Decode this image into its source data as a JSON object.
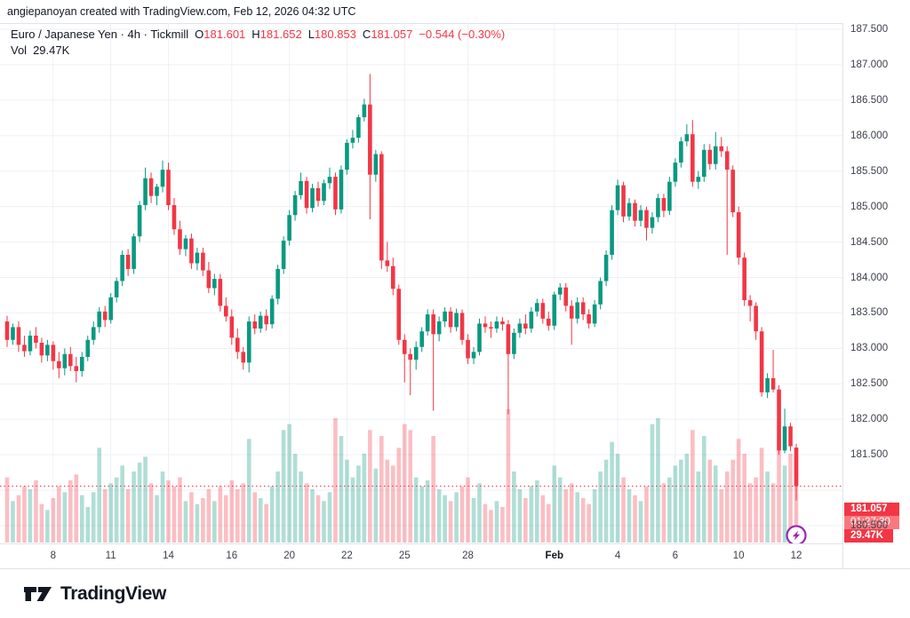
{
  "attribution": "angiepanoyan created with TradingView.com, Feb 12, 2026 04:32 UTC",
  "legend": {
    "series": "Euro / Japanese Yen · 4h · Tickmill",
    "o_label": "O",
    "o_value": "181.601",
    "h_label": "H",
    "h_value": "181.652",
    "l_label": "L",
    "l_value": "180.853",
    "c_label": "C",
    "c_value": "181.057",
    "change": "−0.544 (−0.30%)",
    "vol_label": "Vol",
    "vol_value": "29.47K"
  },
  "colors": {
    "up": "#089981",
    "down": "#f23645",
    "vol_up": "rgba(8,153,129,0.32)",
    "vol_down": "rgba(242,54,69,0.32)",
    "grid": "#eef0f6",
    "border": "#e0e3eb",
    "text": "#131722",
    "price_line": "#f23645",
    "badge_red": "#f23645",
    "badge_light_red": "#f7797f",
    "accent_purple": "#9c27b0"
  },
  "price_axis": {
    "badge": {
      "price": "181.057",
      "countdown": "01:27:30",
      "volume": "29.47K"
    }
  },
  "footer": {
    "logo_text": "TradingView"
  },
  "alert_icon": {
    "name": "lightning-bolt"
  },
  "chart_data": {
    "type": "candlestick",
    "title": "Euro / Japanese Yen, 4h, Tickmill",
    "ylim": [
      180.5,
      187.5
    ],
    "grid_step": 0.5,
    "price_line": 181.057,
    "last_ohlc": {
      "open": 181.601,
      "high": 181.652,
      "low": 180.853,
      "close": 181.057,
      "volume": "29.47K"
    },
    "ohlc_format": [
      "open",
      "high",
      "low",
      "close",
      "volume_K"
    ],
    "price_ticks": [
      {
        "label": "187.500",
        "value": 187.5
      },
      {
        "label": "187.000",
        "value": 187.0
      },
      {
        "label": "186.500",
        "value": 186.5
      },
      {
        "label": "186.000",
        "value": 186.0
      },
      {
        "label": "185.500",
        "value": 185.5
      },
      {
        "label": "185.000",
        "value": 185.0
      },
      {
        "label": "184.500",
        "value": 184.5
      },
      {
        "label": "184.000",
        "value": 184.0
      },
      {
        "label": "183.500",
        "value": 183.5
      },
      {
        "label": "183.000",
        "value": 183.0
      },
      {
        "label": "182.500",
        "value": 182.5
      },
      {
        "label": "182.000",
        "value": 182.0
      },
      {
        "label": "181.500",
        "value": 181.5
      },
      {
        "label": "180.500",
        "value": 180.5
      }
    ],
    "time_ticks": [
      {
        "label": "8",
        "index": 8,
        "bold": false
      },
      {
        "label": "11",
        "index": 18,
        "bold": false
      },
      {
        "label": "14",
        "index": 28,
        "bold": false
      },
      {
        "label": "16",
        "index": 39,
        "bold": false
      },
      {
        "label": "20",
        "index": 49,
        "bold": false
      },
      {
        "label": "22",
        "index": 59,
        "bold": false
      },
      {
        "label": "25",
        "index": 69,
        "bold": false
      },
      {
        "label": "28",
        "index": 80,
        "bold": false
      },
      {
        "label": "Feb",
        "index": 95,
        "bold": true
      },
      {
        "label": "4",
        "index": 106,
        "bold": false
      },
      {
        "label": "6",
        "index": 116,
        "bold": false
      },
      {
        "label": "10",
        "index": 127,
        "bold": false
      },
      {
        "label": "12",
        "index": 137,
        "bold": false
      }
    ],
    "candles": [
      [
        183.38,
        183.46,
        183.02,
        183.12,
        22
      ],
      [
        183.12,
        183.35,
        183.05,
        183.3,
        14
      ],
      [
        183.3,
        183.38,
        182.95,
        183.05,
        16
      ],
      [
        183.05,
        183.18,
        182.88,
        182.96,
        19
      ],
      [
        182.96,
        183.25,
        182.9,
        183.18,
        18
      ],
      [
        183.18,
        183.3,
        183.0,
        183.08,
        21
      ],
      [
        183.08,
        183.15,
        182.8,
        182.9,
        13
      ],
      [
        182.9,
        183.12,
        182.82,
        183.05,
        11
      ],
      [
        183.05,
        183.1,
        182.7,
        182.82,
        15
      ],
      [
        182.82,
        182.95,
        182.58,
        182.72,
        19
      ],
      [
        182.72,
        183.0,
        182.62,
        182.92,
        17
      ],
      [
        182.92,
        183.02,
        182.68,
        182.75,
        21
      ],
      [
        182.75,
        182.88,
        182.52,
        182.68,
        23
      ],
      [
        182.68,
        182.95,
        182.6,
        182.88,
        16
      ],
      [
        182.88,
        183.18,
        182.82,
        183.12,
        12
      ],
      [
        183.12,
        183.38,
        183.05,
        183.3,
        17
      ],
      [
        183.3,
        183.58,
        183.22,
        183.52,
        32
      ],
      [
        183.52,
        183.6,
        183.3,
        183.4,
        18
      ],
      [
        183.4,
        183.78,
        183.35,
        183.72,
        20
      ],
      [
        183.72,
        184.0,
        183.65,
        183.95,
        22
      ],
      [
        183.95,
        184.38,
        183.88,
        184.32,
        26
      ],
      [
        184.32,
        184.4,
        184.02,
        184.12,
        18
      ],
      [
        184.12,
        184.62,
        184.05,
        184.58,
        24
      ],
      [
        184.58,
        185.08,
        184.5,
        185.02,
        27
      ],
      [
        185.02,
        185.55,
        184.95,
        185.4,
        29
      ],
      [
        185.4,
        185.48,
        185.05,
        185.15,
        20
      ],
      [
        185.15,
        185.32,
        185.02,
        185.28,
        16
      ],
      [
        185.28,
        185.65,
        185.2,
        185.52,
        24
      ],
      [
        185.52,
        185.62,
        184.95,
        185.02,
        21
      ],
      [
        185.02,
        185.12,
        184.6,
        184.68,
        19
      ],
      [
        184.68,
        184.8,
        184.32,
        184.4,
        22
      ],
      [
        184.4,
        184.6,
        184.3,
        184.55,
        14
      ],
      [
        184.55,
        184.62,
        184.12,
        184.2,
        17
      ],
      [
        184.2,
        184.42,
        184.1,
        184.35,
        13
      ],
      [
        184.35,
        184.42,
        184.02,
        184.1,
        15
      ],
      [
        184.1,
        184.22,
        183.78,
        183.85,
        18
      ],
      [
        183.85,
        184.05,
        183.75,
        183.98,
        14
      ],
      [
        183.98,
        184.05,
        183.52,
        183.6,
        19
      ],
      [
        183.6,
        183.72,
        183.38,
        183.45,
        16
      ],
      [
        183.45,
        183.55,
        183.05,
        183.15,
        21
      ],
      [
        183.15,
        183.28,
        182.85,
        182.95,
        18
      ],
      [
        182.95,
        183.02,
        182.7,
        182.8,
        20
      ],
      [
        182.8,
        183.45,
        182.66,
        183.38,
        35
      ],
      [
        183.38,
        183.48,
        183.2,
        183.28,
        17
      ],
      [
        183.28,
        183.52,
        183.22,
        183.46,
        15
      ],
      [
        183.46,
        183.55,
        183.25,
        183.34,
        13
      ],
      [
        183.34,
        183.75,
        183.28,
        183.7,
        19
      ],
      [
        183.7,
        184.18,
        183.62,
        184.12,
        24
      ],
      [
        184.12,
        184.58,
        184.05,
        184.52,
        38
      ],
      [
        184.52,
        184.95,
        184.45,
        184.88,
        40
      ],
      [
        184.88,
        185.22,
        184.8,
        185.16,
        30
      ],
      [
        185.16,
        185.48,
        185.1,
        185.36,
        24
      ],
      [
        185.36,
        185.42,
        184.9,
        184.98,
        20
      ],
      [
        184.98,
        185.32,
        184.92,
        185.26,
        18
      ],
      [
        185.26,
        185.35,
        185.0,
        185.08,
        16
      ],
      [
        185.08,
        185.38,
        185.02,
        185.33,
        14
      ],
      [
        185.33,
        185.55,
        185.25,
        185.42,
        17
      ],
      [
        185.42,
        185.48,
        184.88,
        184.96,
        42
      ],
      [
        184.96,
        185.58,
        184.9,
        185.52,
        36
      ],
      [
        185.52,
        185.95,
        185.45,
        185.9,
        28
      ],
      [
        185.9,
        186.08,
        185.82,
        185.97,
        22
      ],
      [
        185.97,
        186.3,
        185.9,
        186.26,
        26
      ],
      [
        186.26,
        186.52,
        186.2,
        186.44,
        30
      ],
      [
        186.44,
        186.87,
        184.82,
        185.45,
        38
      ],
      [
        185.45,
        185.8,
        185.35,
        185.74,
        25
      ],
      [
        185.74,
        185.78,
        184.12,
        184.24,
        36
      ],
      [
        184.24,
        184.5,
        184.08,
        184.16,
        28
      ],
      [
        184.16,
        184.28,
        183.75,
        183.84,
        26
      ],
      [
        183.84,
        183.9,
        183.05,
        183.12,
        32
      ],
      [
        183.12,
        183.2,
        182.52,
        182.92,
        40
      ],
      [
        182.92,
        183.0,
        182.34,
        182.84,
        38
      ],
      [
        182.84,
        183.1,
        182.7,
        183.02,
        22
      ],
      [
        183.02,
        183.3,
        182.95,
        183.24,
        19
      ],
      [
        183.24,
        183.55,
        183.18,
        183.48,
        21
      ],
      [
        183.48,
        183.55,
        182.12,
        183.2,
        36
      ],
      [
        183.2,
        183.45,
        183.1,
        183.38,
        18
      ],
      [
        183.38,
        183.58,
        183.3,
        183.52,
        16
      ],
      [
        183.52,
        183.58,
        183.22,
        183.3,
        14
      ],
      [
        183.3,
        183.56,
        183.24,
        183.5,
        17
      ],
      [
        183.5,
        183.55,
        183.05,
        183.12,
        19
      ],
      [
        183.12,
        183.2,
        182.78,
        182.86,
        22
      ],
      [
        182.86,
        183.02,
        182.78,
        182.95,
        15
      ],
      [
        182.95,
        183.42,
        182.9,
        183.35,
        20
      ],
      [
        183.35,
        183.45,
        183.22,
        183.3,
        13
      ],
      [
        183.3,
        183.38,
        183.15,
        183.28,
        11
      ],
      [
        183.28,
        183.45,
        183.22,
        183.38,
        14
      ],
      [
        183.38,
        183.44,
        183.25,
        183.34,
        12
      ],
      [
        183.34,
        183.4,
        182.07,
        182.92,
        45
      ],
      [
        182.92,
        183.28,
        182.85,
        183.22,
        24
      ],
      [
        183.22,
        183.42,
        183.15,
        183.35,
        18
      ],
      [
        183.35,
        183.48,
        183.2,
        183.28,
        15
      ],
      [
        183.28,
        183.58,
        183.22,
        183.52,
        19
      ],
      [
        183.52,
        183.7,
        183.45,
        183.64,
        21
      ],
      [
        183.64,
        183.7,
        183.35,
        183.42,
        16
      ],
      [
        183.42,
        183.52,
        183.25,
        183.32,
        13
      ],
      [
        183.32,
        183.8,
        183.26,
        183.76,
        26
      ],
      [
        183.76,
        183.92,
        183.68,
        183.86,
        22
      ],
      [
        183.86,
        183.92,
        183.52,
        183.6,
        18
      ],
      [
        183.6,
        183.68,
        183.05,
        183.42,
        20
      ],
      [
        183.42,
        183.72,
        183.35,
        183.65,
        17
      ],
      [
        183.65,
        183.72,
        183.4,
        183.48,
        15
      ],
      [
        183.48,
        183.55,
        183.28,
        183.35,
        13
      ],
      [
        183.35,
        183.68,
        183.3,
        183.62,
        18
      ],
      [
        183.62,
        184.0,
        183.55,
        183.95,
        24
      ],
      [
        183.95,
        184.38,
        183.88,
        184.32,
        28
      ],
      [
        184.32,
        185.02,
        184.25,
        184.95,
        34
      ],
      [
        184.95,
        185.38,
        184.88,
        185.3,
        30
      ],
      [
        185.3,
        185.35,
        184.78,
        184.86,
        22
      ],
      [
        184.86,
        185.12,
        184.8,
        185.05,
        18
      ],
      [
        185.05,
        185.1,
        184.72,
        184.8,
        16
      ],
      [
        184.8,
        185.02,
        184.72,
        184.95,
        14
      ],
      [
        184.95,
        185.0,
        184.52,
        184.7,
        19
      ],
      [
        184.7,
        184.92,
        184.62,
        184.85,
        40
      ],
      [
        184.85,
        185.18,
        184.78,
        185.12,
        42
      ],
      [
        185.12,
        185.18,
        184.85,
        184.94,
        20
      ],
      [
        184.94,
        185.42,
        184.88,
        185.35,
        22
      ],
      [
        185.35,
        185.68,
        185.28,
        185.62,
        26
      ],
      [
        185.62,
        185.98,
        185.55,
        185.92,
        28
      ],
      [
        185.92,
        186.16,
        185.85,
        186.02,
        30
      ],
      [
        186.02,
        186.22,
        185.28,
        185.35,
        38
      ],
      [
        185.35,
        185.5,
        185.25,
        185.42,
        24
      ],
      [
        185.42,
        185.88,
        185.35,
        185.8,
        36
      ],
      [
        185.8,
        185.88,
        185.52,
        185.6,
        28
      ],
      [
        185.6,
        186.05,
        185.52,
        185.85,
        26
      ],
      [
        185.85,
        185.98,
        185.7,
        185.78,
        18
      ],
      [
        185.78,
        185.85,
        184.32,
        185.52,
        24
      ],
      [
        185.52,
        185.58,
        184.85,
        184.92,
        28
      ],
      [
        184.92,
        185.0,
        184.18,
        184.28,
        35
      ],
      [
        184.28,
        184.35,
        183.6,
        183.68,
        30
      ],
      [
        183.68,
        183.75,
        183.38,
        183.6,
        20
      ],
      [
        183.6,
        183.65,
        183.12,
        183.24,
        22
      ],
      [
        183.24,
        183.3,
        182.32,
        182.38,
        32
      ],
      [
        182.38,
        182.65,
        182.3,
        182.58,
        24
      ],
      [
        182.58,
        182.98,
        182.38,
        182.42,
        20
      ],
      [
        182.42,
        182.48,
        181.5,
        181.56,
        36
      ],
      [
        181.56,
        182.15,
        181.52,
        181.9,
        26
      ],
      [
        181.9,
        181.95,
        181.55,
        181.62,
        30
      ],
      [
        181.601,
        181.652,
        180.853,
        181.057,
        29.47
      ]
    ]
  }
}
